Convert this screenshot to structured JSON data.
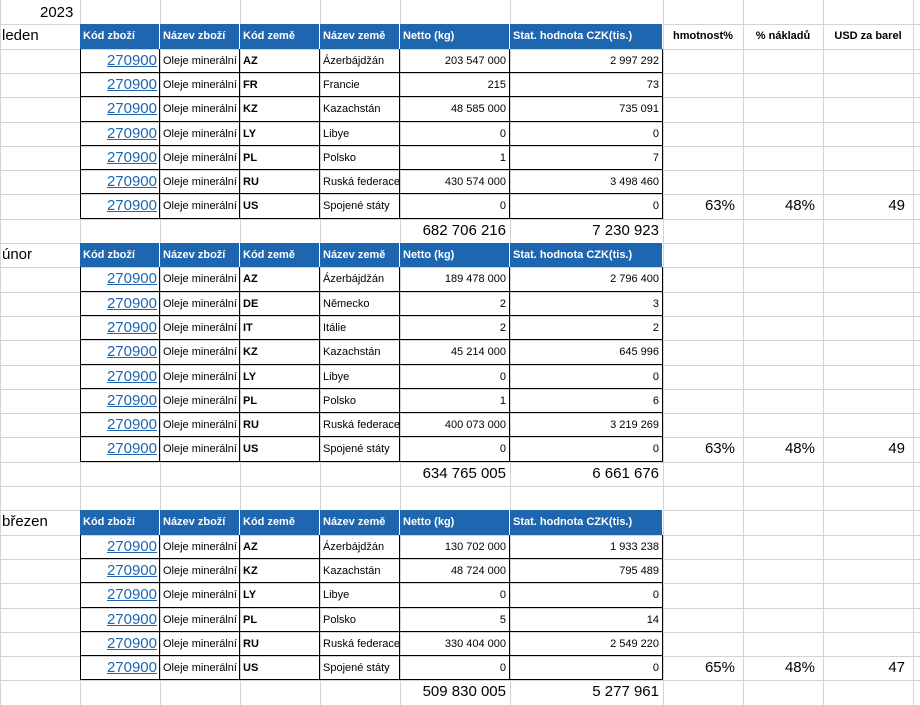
{
  "year": "2023",
  "headers": [
    "Kód zboží",
    "Název zboží",
    "Kód země",
    "Název země",
    "Netto (kg)",
    "Stat. hodnota CZK(tis.)"
  ],
  "extra_headers": [
    "hmotnost%",
    "% nákladů",
    "USD za barel"
  ],
  "months": [
    {
      "name": "leden",
      "rows": [
        {
          "code": "270900",
          "product": "Oleje minerální",
          "cc": "AZ",
          "country": "Ázerbájdžán",
          "netto": "203 547 000",
          "value": "2 997 292"
        },
        {
          "code": "270900",
          "product": "Oleje minerální",
          "cc": "FR",
          "country": "Francie",
          "netto": "215",
          "value": "73"
        },
        {
          "code": "270900",
          "product": "Oleje minerální",
          "cc": "KZ",
          "country": "Kazachstán",
          "netto": "48 585 000",
          "value": "735 091"
        },
        {
          "code": "270900",
          "product": "Oleje minerální",
          "cc": "LY",
          "country": "Libye",
          "netto": "0",
          "value": "0"
        },
        {
          "code": "270900",
          "product": "Oleje minerální",
          "cc": "PL",
          "country": "Polsko",
          "netto": "1",
          "value": "7"
        },
        {
          "code": "270900",
          "product": "Oleje minerální",
          "cc": "RU",
          "country": "Ruská federace",
          "netto": "430 574 000",
          "value": "3 498 460"
        },
        {
          "code": "270900",
          "product": "Oleje minerální",
          "cc": "US",
          "country": "Spojené státy",
          "netto": "0",
          "value": "0"
        }
      ],
      "total_netto": "682 706 216",
      "total_value": "7 230 923",
      "hmotnost": "63%",
      "naklady": "48%",
      "usd": "49"
    },
    {
      "name": "únor",
      "rows": [
        {
          "code": "270900",
          "product": "Oleje minerální",
          "cc": "AZ",
          "country": "Ázerbájdžán",
          "netto": "189 478 000",
          "value": "2 796 400"
        },
        {
          "code": "270900",
          "product": "Oleje minerální",
          "cc": "DE",
          "country": "Německo",
          "netto": "2",
          "value": "3"
        },
        {
          "code": "270900",
          "product": "Oleje minerální",
          "cc": "IT",
          "country": "Itálie",
          "netto": "2",
          "value": "2"
        },
        {
          "code": "270900",
          "product": "Oleje minerální",
          "cc": "KZ",
          "country": "Kazachstán",
          "netto": "45 214 000",
          "value": "645 996"
        },
        {
          "code": "270900",
          "product": "Oleje minerální",
          "cc": "LY",
          "country": "Libye",
          "netto": "0",
          "value": "0"
        },
        {
          "code": "270900",
          "product": "Oleje minerální",
          "cc": "PL",
          "country": "Polsko",
          "netto": "1",
          "value": "6"
        },
        {
          "code": "270900",
          "product": "Oleje minerální",
          "cc": "RU",
          "country": "Ruská federace",
          "netto": "400 073 000",
          "value": "3 219 269"
        },
        {
          "code": "270900",
          "product": "Oleje minerální",
          "cc": "US",
          "country": "Spojené státy",
          "netto": "0",
          "value": "0"
        }
      ],
      "total_netto": "634 765 005",
      "total_value": "6 661 676",
      "hmotnost": "63%",
      "naklady": "48%",
      "usd": "49"
    },
    {
      "name": "březen",
      "rows": [
        {
          "code": "270900",
          "product": "Oleje minerální",
          "cc": "AZ",
          "country": "Ázerbájdžán",
          "netto": "130 702 000",
          "value": "1 933 238"
        },
        {
          "code": "270900",
          "product": "Oleje minerální",
          "cc": "KZ",
          "country": "Kazachstán",
          "netto": "48 724 000",
          "value": "795 489"
        },
        {
          "code": "270900",
          "product": "Oleje minerální",
          "cc": "LY",
          "country": "Libye",
          "netto": "0",
          "value": "0"
        },
        {
          "code": "270900",
          "product": "Oleje minerální",
          "cc": "PL",
          "country": "Polsko",
          "netto": "5",
          "value": "14"
        },
        {
          "code": "270900",
          "product": "Oleje minerální",
          "cc": "RU",
          "country": "Ruská federace",
          "netto": "330 404 000",
          "value": "2 549 220"
        },
        {
          "code": "270900",
          "product": "Oleje minerální",
          "cc": "US",
          "country": "Spojené státy",
          "netto": "0",
          "value": "0"
        }
      ],
      "total_netto": "509 830 005",
      "total_value": "5 277 961",
      "hmotnost": "65%",
      "naklady": "48%",
      "usd": "47"
    }
  ]
}
